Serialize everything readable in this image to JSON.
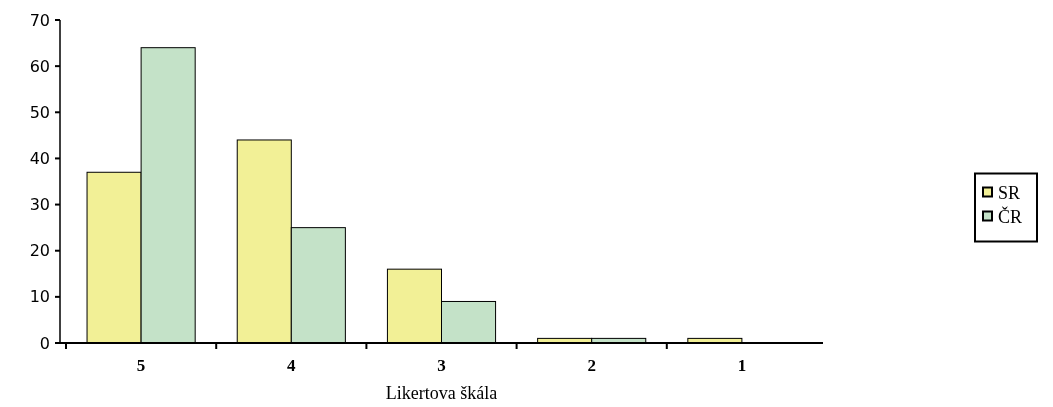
{
  "chart_data": {
    "type": "bar",
    "xlabel": "Likertova škála",
    "categories": [
      "5",
      "4",
      "3",
      "2",
      "1"
    ],
    "series": [
      {
        "name": "SR",
        "color": "#f2f096",
        "values": [
          37,
          44,
          16,
          1,
          1
        ]
      },
      {
        "name": "ČR",
        "color": "#c4e2c8",
        "values": [
          64,
          25,
          9,
          1,
          0
        ]
      }
    ],
    "ylim": [
      0,
      70
    ],
    "yticks": [
      0,
      10,
      20,
      30,
      40,
      50,
      60,
      70
    ],
    "grid": false,
    "legend": "right"
  }
}
